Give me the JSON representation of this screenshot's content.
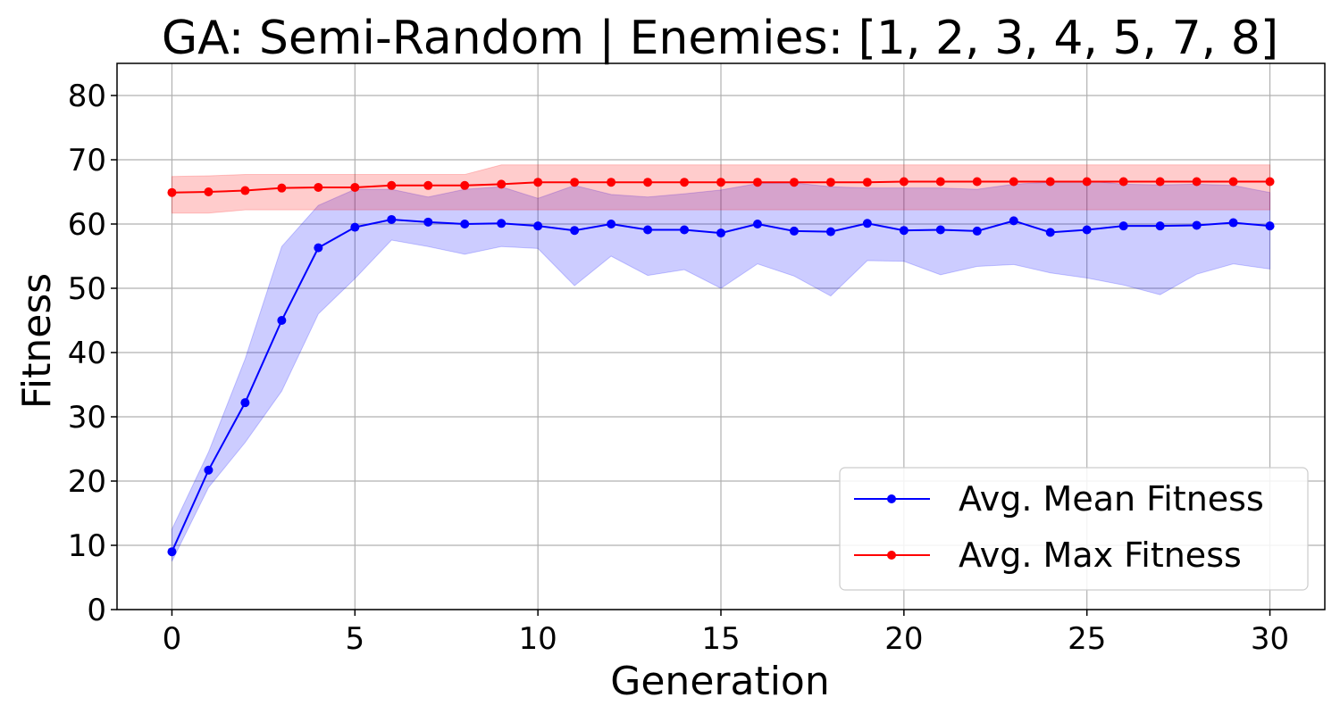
{
  "chart_data": {
    "type": "line",
    "title": "GA: Semi-Random | Enemies: [1, 2, 3, 4, 5, 7, 8]",
    "xlabel": "Generation",
    "ylabel": "Fitness",
    "xlim": [
      -1.5,
      31.5
    ],
    "ylim": [
      0,
      85
    ],
    "xticks": [
      0,
      5,
      10,
      15,
      20,
      25,
      30
    ],
    "yticks": [
      0,
      10,
      20,
      30,
      40,
      50,
      60,
      70,
      80
    ],
    "grid": true,
    "legend_position": "lower-right",
    "x": [
      0,
      1,
      2,
      3,
      4,
      5,
      6,
      7,
      8,
      9,
      10,
      11,
      12,
      13,
      14,
      15,
      16,
      17,
      18,
      19,
      20,
      21,
      22,
      23,
      24,
      25,
      26,
      27,
      28,
      29,
      30
    ],
    "series": [
      {
        "name": "Avg. Mean Fitness",
        "color": "#0000ff",
        "band_color": "#0000ff",
        "values": [
          9.0,
          21.7,
          32.2,
          45.0,
          56.3,
          59.5,
          60.7,
          60.3,
          60.0,
          60.1,
          59.7,
          59.0,
          60.0,
          59.1,
          59.1,
          58.6,
          60.0,
          58.9,
          58.8,
          60.1,
          59.0,
          59.1,
          58.9,
          60.5,
          58.7,
          59.1,
          59.7,
          59.7,
          59.8,
          60.2,
          59.7
        ],
        "lower": [
          7.5,
          19.0,
          26.0,
          34.0,
          46.0,
          51.5,
          57.5,
          56.5,
          55.3,
          56.5,
          56.2,
          50.4,
          55.0,
          52.0,
          52.9,
          50.0,
          53.8,
          51.9,
          48.8,
          54.3,
          54.2,
          52.1,
          53.4,
          53.7,
          52.4,
          51.6,
          50.5,
          49.0,
          52.2,
          53.8,
          53.0
        ],
        "upper": [
          12.5,
          24.5,
          39.0,
          56.5,
          62.9,
          65.4,
          65.4,
          64.2,
          65.4,
          65.8,
          64.0,
          66.0,
          64.6,
          64.2,
          64.7,
          65.3,
          66.3,
          66.4,
          65.8,
          65.6,
          65.6,
          65.6,
          65.4,
          66.2,
          66.5,
          66.7,
          66.2,
          66.1,
          66.2,
          66.0,
          64.9
        ]
      },
      {
        "name": "Avg. Max Fitness",
        "color": "#ff0000",
        "band_color": "#ff0000",
        "values": [
          64.9,
          65.0,
          65.2,
          65.6,
          65.7,
          65.7,
          66.0,
          66.0,
          66.0,
          66.2,
          66.5,
          66.5,
          66.5,
          66.5,
          66.5,
          66.5,
          66.5,
          66.5,
          66.5,
          66.5,
          66.6,
          66.6,
          66.6,
          66.6,
          66.6,
          66.6,
          66.6,
          66.6,
          66.6,
          66.6,
          66.6
        ],
        "lower": [
          61.7,
          61.7,
          62.2,
          62.2,
          62.2,
          62.2,
          62.2,
          62.2,
          62.2,
          62.2,
          62.2,
          62.2,
          62.2,
          62.2,
          62.2,
          62.2,
          62.2,
          62.2,
          62.2,
          62.2,
          62.2,
          62.2,
          62.2,
          62.2,
          62.2,
          62.2,
          62.2,
          62.2,
          62.2,
          62.2,
          62.2
        ],
        "upper": [
          67.4,
          67.5,
          67.7,
          67.7,
          67.7,
          67.7,
          67.7,
          67.7,
          67.7,
          69.2,
          69.2,
          69.2,
          69.2,
          69.2,
          69.2,
          69.2,
          69.2,
          69.2,
          69.2,
          69.2,
          69.2,
          69.2,
          69.2,
          69.2,
          69.2,
          69.2,
          69.2,
          69.2,
          69.2,
          69.2,
          69.2
        ]
      }
    ]
  }
}
